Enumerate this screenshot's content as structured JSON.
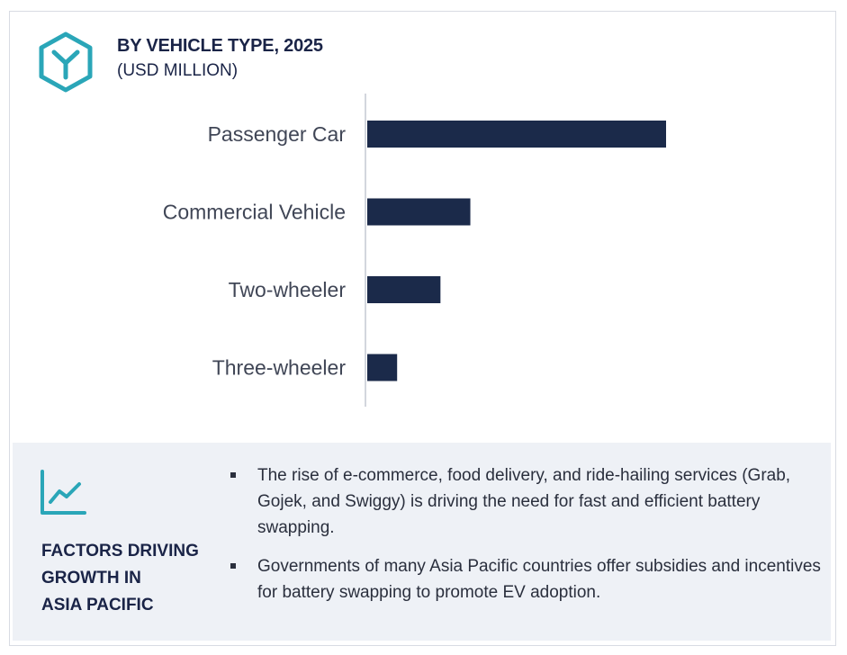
{
  "header": {
    "title": "BY VEHICLE TYPE, 2025",
    "subtitle": "(USD MILLION)",
    "icon": "hexagon-y-icon",
    "accent_color": "#2aa6b8"
  },
  "chart_data": {
    "type": "bar",
    "orientation": "horizontal",
    "categories": [
      "Passenger Car",
      "Commercial Vehicle",
      "Two-wheeler",
      "Three-wheeler"
    ],
    "values": [
      100,
      34.5,
      24.5,
      10
    ],
    "title": "BY VEHICLE TYPE, 2025",
    "subtitle": "(USD MILLION)",
    "xlabel": "",
    "ylabel": "",
    "xlim": [
      0,
      100
    ],
    "grid": false,
    "value_labels_shown": false,
    "bar_color": "#1b2a4a"
  },
  "factors": {
    "icon": "trend-line-icon",
    "heading_lines": [
      "FACTORS DRIVING",
      "GROWTH IN",
      "ASIA PACIFIC"
    ],
    "bullets": [
      "The rise of e-commerce, food delivery, and ride-hailing services (Grab, Gojek, and Swiggy) is driving the need for fast and efficient battery swapping.",
      "Governments of many Asia Pacific countries offer subsidies and incentives for battery swapping to promote EV adoption."
    ]
  }
}
